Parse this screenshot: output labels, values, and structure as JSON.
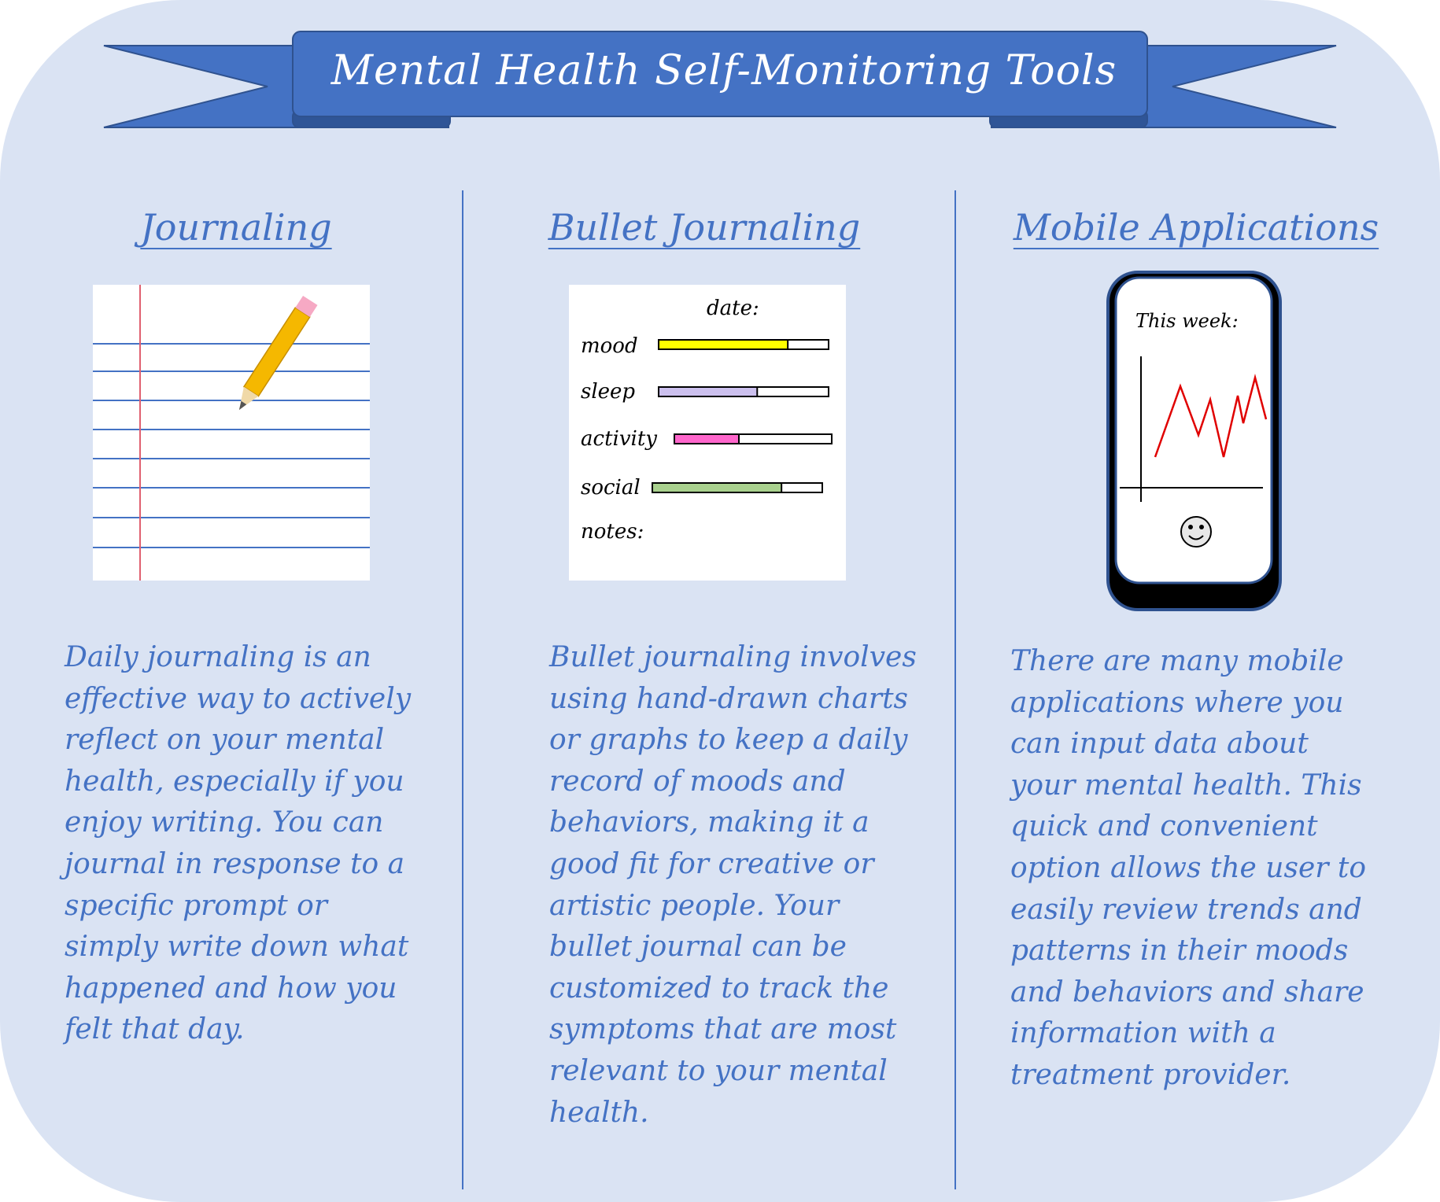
{
  "title": "Mental Health Self-Monitoring Tools",
  "colors": {
    "panel_bg": "#dae3f3",
    "accent_blue": "#4472c4",
    "mood_bar": "#ffff00",
    "sleep_bar": "#ccc0ee",
    "activity_bar": "#ff66cc",
    "social_bar": "#a9d18e",
    "pencil": "#f5b800",
    "trend_line": "#e00000"
  },
  "columns": {
    "journaling": {
      "heading": "Journaling",
      "illustration_icon": "lined-notebook-with-pencil-icon",
      "description": "Daily journaling is an effective way to actively reflect on your mental health, especially if you enjoy writing.  You can journal in response to a specific prompt or simply write down what happened and how you felt that day."
    },
    "bullet_journaling": {
      "heading": "Bullet Journaling",
      "tracker": {
        "date_label": "date:",
        "rows": [
          {
            "label": "mood",
            "fill": 0.76
          },
          {
            "label": "sleep",
            "fill": 0.58
          },
          {
            "label": "activity",
            "fill": 0.41
          },
          {
            "label": "social",
            "fill": 0.76
          }
        ],
        "notes_label": "notes:"
      },
      "description": "Bullet journaling involves using hand-drawn charts or graphs to keep a daily record of moods and behaviors, making it a good fit for creative or artistic people.  Your bullet journal can be customized to track the symptoms that are most relevant to your mental health."
    },
    "mobile_applications": {
      "heading": "Mobile Applications",
      "phone": {
        "screen_label": "This week:",
        "trend_icon": "zigzag-line-chart-icon",
        "face_icon": "smiley-face-icon"
      },
      "description": "There are many mobile applications where you can input data about your mental health.  This quick and convenient option allows the user to easily review trends and patterns in their moods and behaviors and share information with a treatment provider."
    }
  }
}
